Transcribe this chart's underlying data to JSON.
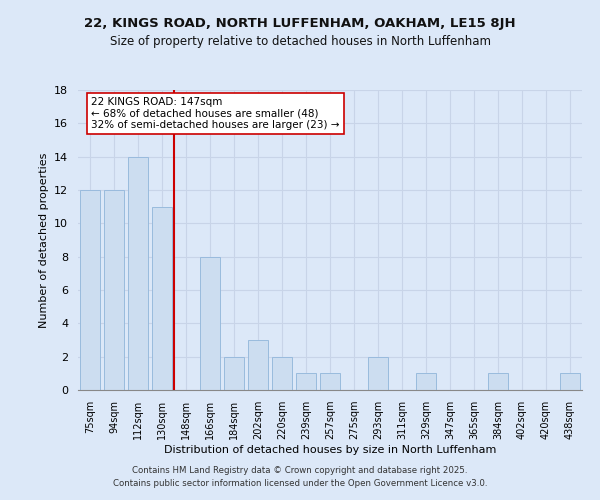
{
  "title1": "22, KINGS ROAD, NORTH LUFFENHAM, OAKHAM, LE15 8JH",
  "title2": "Size of property relative to detached houses in North Luffenham",
  "xlabel": "Distribution of detached houses by size in North Luffenham",
  "ylabel": "Number of detached properties",
  "categories": [
    "75sqm",
    "94sqm",
    "112sqm",
    "130sqm",
    "148sqm",
    "166sqm",
    "184sqm",
    "202sqm",
    "220sqm",
    "239sqm",
    "257sqm",
    "275sqm",
    "293sqm",
    "311sqm",
    "329sqm",
    "347sqm",
    "365sqm",
    "384sqm",
    "402sqm",
    "420sqm",
    "438sqm"
  ],
  "values": [
    12,
    12,
    14,
    11,
    0,
    8,
    2,
    3,
    2,
    1,
    1,
    0,
    2,
    0,
    1,
    0,
    0,
    1,
    0,
    0,
    1
  ],
  "bar_color": "#ccddf0",
  "bar_edge_color": "#99bbdd",
  "vline_color": "#cc0000",
  "annotation_text": "22 KINGS ROAD: 147sqm\n← 68% of detached houses are smaller (48)\n32% of semi-detached houses are larger (23) →",
  "annotation_box_color": "#ffffff",
  "annotation_box_edge": "#cc0000",
  "ylim": [
    0,
    18
  ],
  "yticks": [
    0,
    2,
    4,
    6,
    8,
    10,
    12,
    14,
    16,
    18
  ],
  "grid_color": "#c8d4e8",
  "bg_color": "#dce8f8",
  "footer1": "Contains HM Land Registry data © Crown copyright and database right 2025.",
  "footer2": "Contains public sector information licensed under the Open Government Licence v3.0."
}
